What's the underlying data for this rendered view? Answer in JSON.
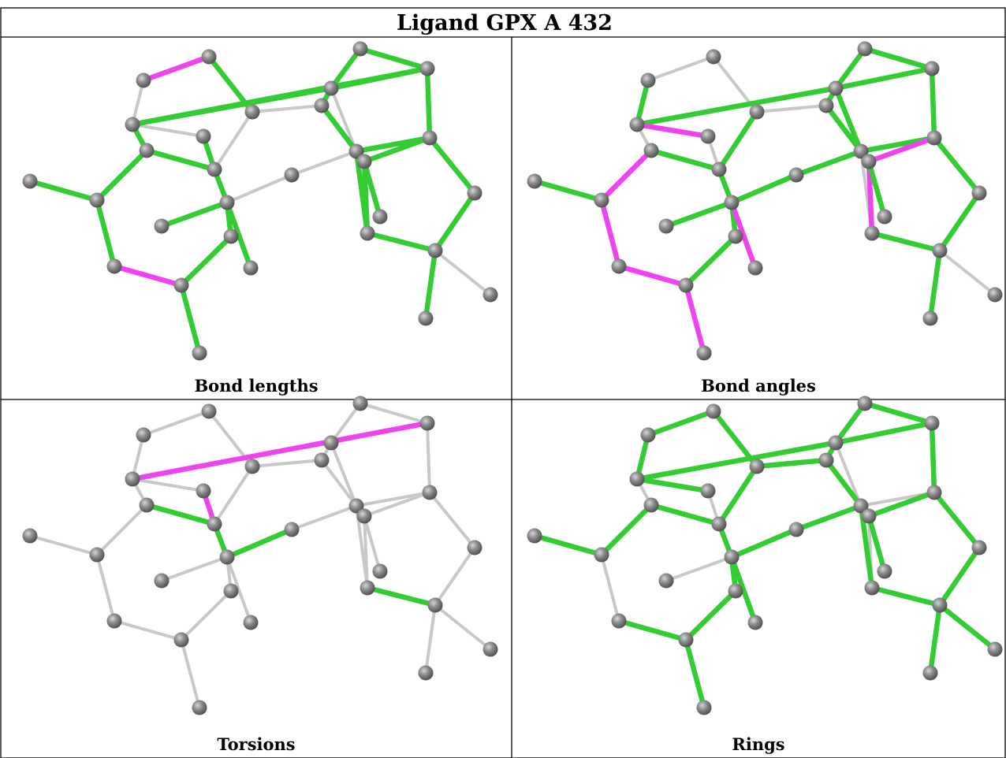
{
  "title": "Ligand GPX A 432",
  "colors": {
    "ok": "#33cc33",
    "outlier": "#ee44ee",
    "neutral": "#c8c8c8",
    "atom": "#808080"
  },
  "panels": [
    {
      "key": "bond-lengths",
      "caption": "Bond lengths"
    },
    {
      "key": "bond-angles",
      "caption": "Bond angles"
    },
    {
      "key": "torsions",
      "caption": "Torsions"
    },
    {
      "key": "rings",
      "caption": "Rings"
    }
  ]
}
